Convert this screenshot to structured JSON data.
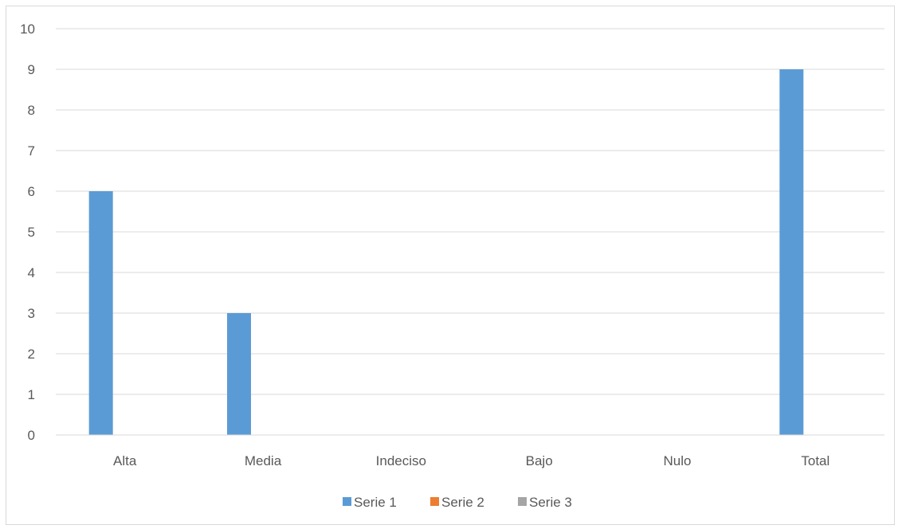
{
  "chart_data": {
    "type": "bar",
    "categories": [
      "Alta",
      "Media",
      "Indeciso",
      "Bajo",
      "Nulo",
      "Total"
    ],
    "series": [
      {
        "name": "Serie 1",
        "values": [
          6,
          3,
          0,
          0,
          0,
          9
        ],
        "color": "#5b9bd5"
      },
      {
        "name": "Serie 2",
        "values": [
          0,
          0,
          0,
          0,
          0,
          0
        ],
        "color": "#ed7d31"
      },
      {
        "name": "Serie 3",
        "values": [
          0,
          0,
          0,
          0,
          0,
          0
        ],
        "color": "#a5a5a5"
      }
    ],
    "yticks": [
      "0",
      "1",
      "2",
      "3",
      "4",
      "5",
      "6",
      "7",
      "8",
      "9",
      "10"
    ],
    "ylim": [
      0,
      10
    ],
    "grid": true,
    "legend_position": "bottom"
  }
}
